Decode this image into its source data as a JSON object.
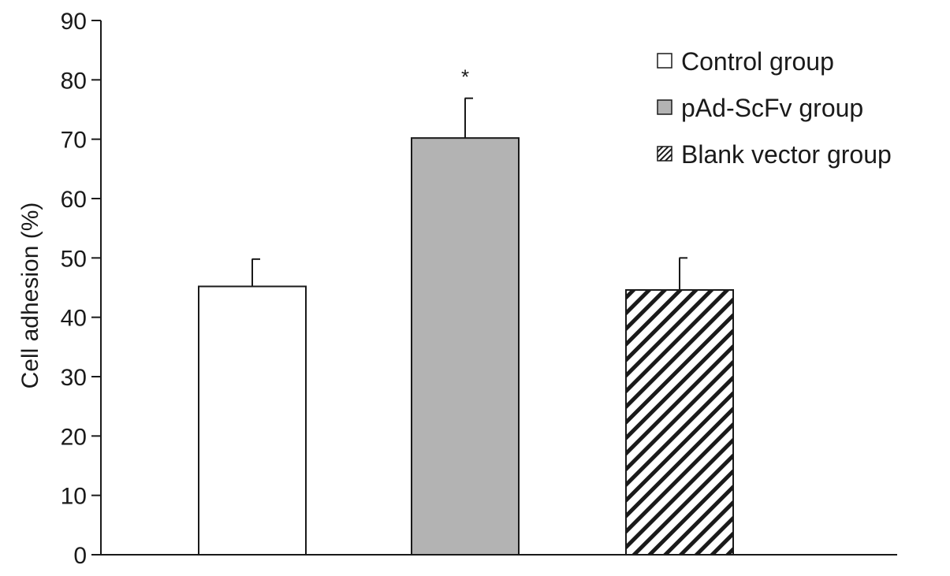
{
  "chart_data": {
    "type": "bar",
    "title": "",
    "xlabel": "",
    "ylabel": "Cell adhesion (%)",
    "ylim": [
      0,
      90
    ],
    "yticks": [
      0,
      10,
      20,
      30,
      40,
      50,
      60,
      70,
      80,
      90
    ],
    "grid": false,
    "legend_position": "top-right",
    "series": [
      {
        "name": "Control group",
        "value": 45.2,
        "error": 4.6,
        "fill": "#ffffff",
        "pattern": "none",
        "annotation": ""
      },
      {
        "name": "pAd-ScFv group",
        "value": 70.2,
        "error": 6.7,
        "fill": "#b3b3b3",
        "pattern": "none",
        "annotation": "*"
      },
      {
        "name": "Blank vector group",
        "value": 44.6,
        "error": 5.4,
        "fill": "#ffffff",
        "pattern": "diagonal-hatch",
        "annotation": ""
      }
    ]
  }
}
